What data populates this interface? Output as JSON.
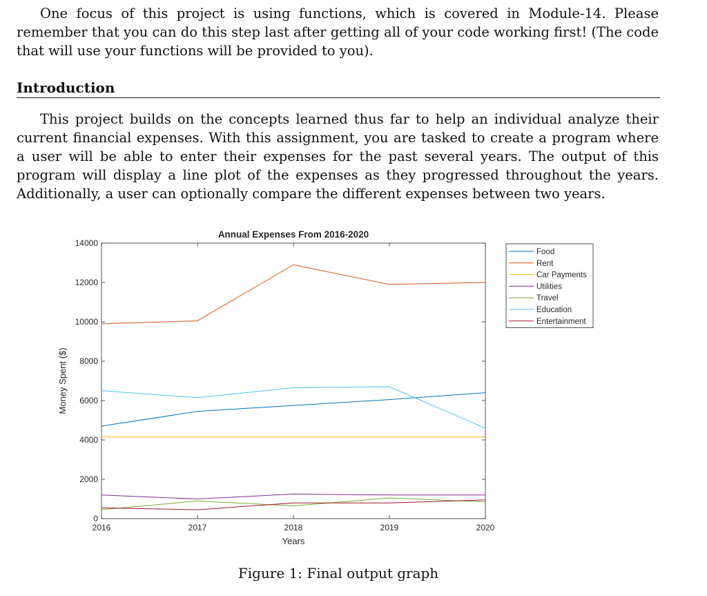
{
  "paragraph1": "One focus of this project is using functions, which is covered in Module-14. Please remember that you can do this step last after getting all of your code working first! (The code that will use your functions will be provided to you).",
  "intro_heading": "Introduction",
  "paragraph2": "This project builds on the concepts learned thus far to help an individual analyze their current financial expenses. With this assignment, you are tasked to create a program where a user will be able to enter their expenses for the past several years. The output of this program will display a line plot of the expenses as they progressed throughout the years. Additionally, a user can optionally compare the different expenses between two years.",
  "caption": "Figure 1: Final output graph",
  "chart_data": {
    "type": "line",
    "title": "Annual Expenses From 2016-2020",
    "xlabel": "Years",
    "ylabel": "Money Spent ($)",
    "x": [
      2016,
      2017,
      2018,
      2019,
      2020
    ],
    "xlim": [
      2016,
      2020
    ],
    "ylim": [
      0,
      14000
    ],
    "xticks": [
      "2016",
      "2017",
      "2018",
      "2019",
      "2020"
    ],
    "yticks": [
      "0",
      "2000",
      "4000",
      "6000",
      "8000",
      "10000",
      "12000",
      "14000"
    ],
    "grid": false,
    "legend_position": "outside-top-right",
    "series": [
      {
        "name": "Food",
        "color": "#0072BD",
        "values": [
          4700,
          5450,
          5750,
          6050,
          6400
        ]
      },
      {
        "name": "Rent",
        "color": "#D95319",
        "values": [
          9900,
          10050,
          12900,
          11900,
          12000
        ]
      },
      {
        "name": "Car Payments",
        "color": "#EDB120",
        "values": [
          4150,
          4150,
          4150,
          4150,
          4150
        ]
      },
      {
        "name": "Utilities",
        "color": "#7E2F8E",
        "values": [
          1200,
          1000,
          1250,
          1200,
          1200
        ]
      },
      {
        "name": "Travel",
        "color": "#77AC30",
        "values": [
          450,
          900,
          650,
          1050,
          850
        ]
      },
      {
        "name": "Education",
        "color": "#4DBEEE",
        "values": [
          6500,
          6150,
          6650,
          6700,
          4600
        ]
      },
      {
        "name": "Entertainment",
        "color": "#A2142F",
        "values": [
          550,
          450,
          800,
          800,
          950
        ]
      }
    ]
  }
}
